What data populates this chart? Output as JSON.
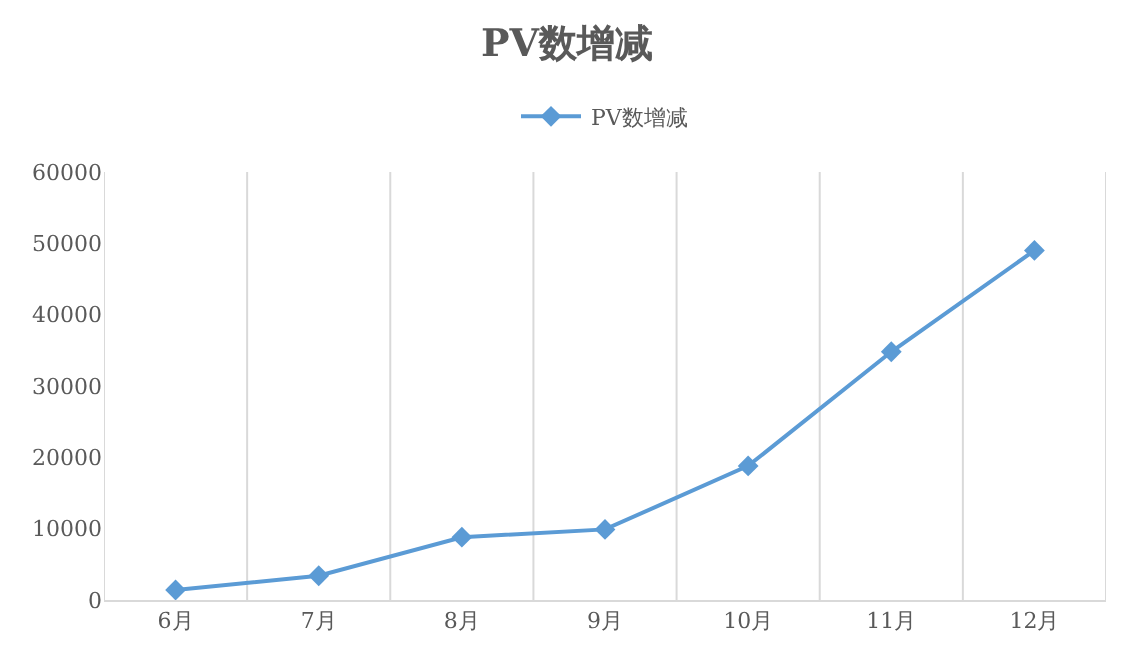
{
  "chart_data": {
    "type": "line",
    "title": "PV数增减",
    "categories": [
      "6月",
      "7月",
      "8月",
      "9月",
      "10月",
      "11月",
      "12月"
    ],
    "series": [
      {
        "name": "PV数增减",
        "color": "#5b9bd5",
        "values": [
          1400,
          3400,
          8800,
          9900,
          18800,
          34800,
          49000
        ]
      }
    ],
    "ylim": [
      0,
      60000
    ],
    "yticks": [
      0,
      10000,
      20000,
      30000,
      40000,
      50000,
      60000
    ],
    "grid": "x",
    "legend": "top",
    "marker": "diamond",
    "line_style": "solid"
  }
}
